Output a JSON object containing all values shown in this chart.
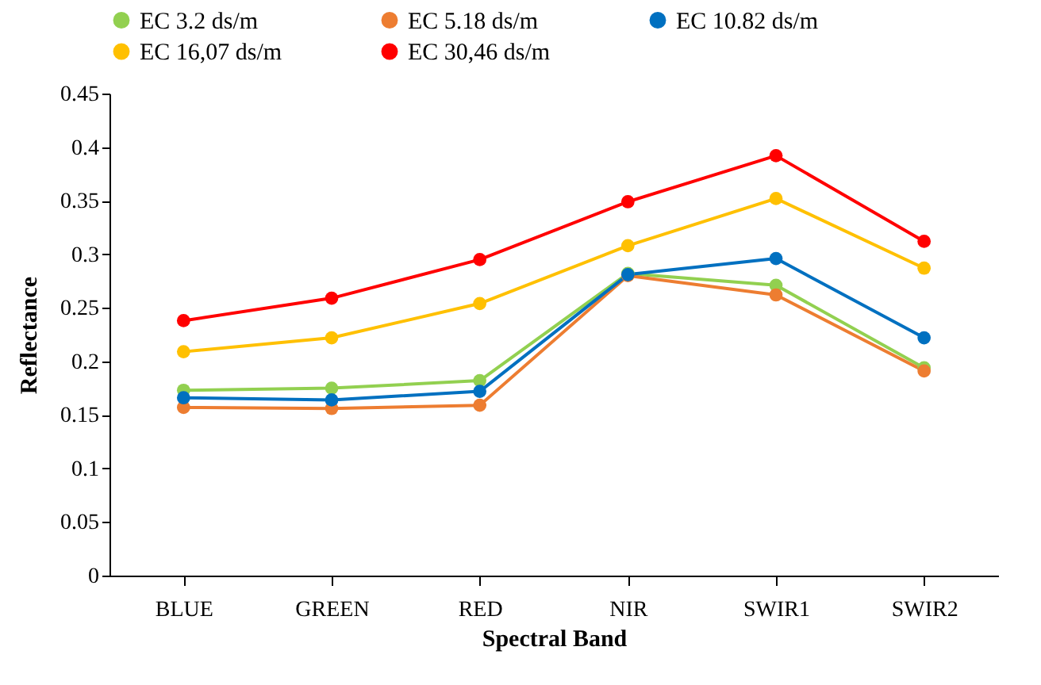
{
  "chart_data": {
    "type": "line",
    "xlabel": "Spectral Band",
    "ylabel": "Reflectance",
    "categories": [
      "BLUE",
      "GREEN",
      "RED",
      "NIR",
      "SWIR1",
      "SWIR2"
    ],
    "series": [
      {
        "name": "EC 3.2 ds/m",
        "color": "#92d050",
        "values": [
          0.173,
          0.175,
          0.182,
          0.282,
          0.271,
          0.194
        ]
      },
      {
        "name": "EC 5.18 ds/m",
        "color": "#ed7d31",
        "values": [
          0.157,
          0.156,
          0.159,
          0.28,
          0.262,
          0.191
        ]
      },
      {
        "name": "EC 10.82 ds/m",
        "color": "#0070c0",
        "values": [
          0.166,
          0.164,
          0.172,
          0.281,
          0.296,
          0.222
        ]
      },
      {
        "name": "EC 16,07 ds/m",
        "color": "#ffc000",
        "values": [
          0.209,
          0.222,
          0.254,
          0.308,
          0.352,
          0.287
        ]
      },
      {
        "name": "EC 30,46 ds/m",
        "color": "#ff0000",
        "values": [
          0.238,
          0.259,
          0.295,
          0.349,
          0.392,
          0.312
        ]
      }
    ],
    "ylim": [
      0,
      0.45
    ],
    "yticks": [
      0,
      0.05,
      0.1,
      0.15,
      0.2,
      0.25,
      0.3,
      0.35,
      0.4,
      0.45
    ],
    "grid": false,
    "legend": "top",
    "marker": "circle",
    "line_style": "solid"
  }
}
